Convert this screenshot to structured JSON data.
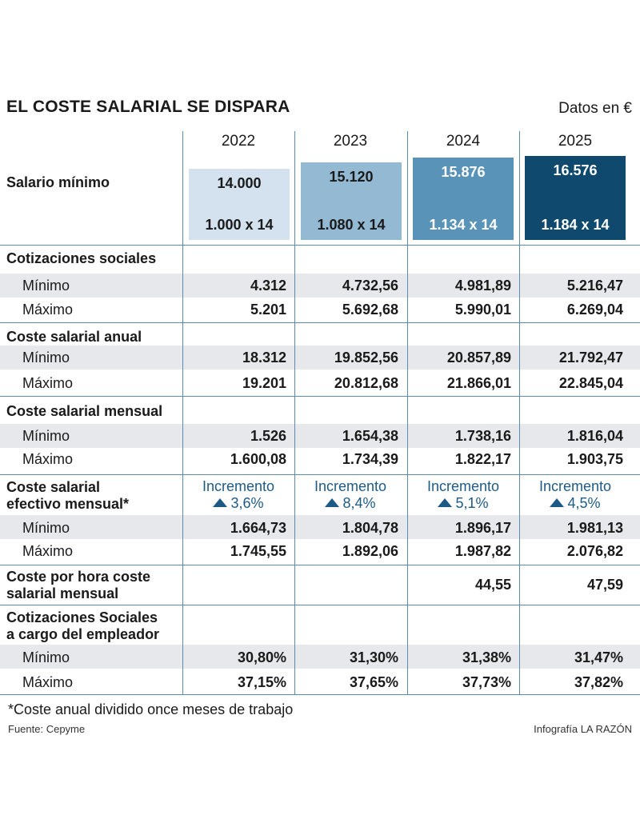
{
  "header": {
    "title": "EL COSTE SALARIAL SE DISPARA",
    "units": "Datos en €"
  },
  "chart_data": {
    "type": "table",
    "years": [
      "2022",
      "2023",
      "2024",
      "2025"
    ],
    "colors": [
      "#d3e2ee",
      "#93b9d3",
      "#5a93b8",
      "#0f4a6e"
    ],
    "salario_minimo": {
      "label": "Salario mínimo",
      "anual": [
        "14.000",
        "15.120",
        "15.876",
        "16.576"
      ],
      "mensual": [
        "1.000 x 14",
        "1.080 x 14",
        "1.134 x 14",
        "1.184 x 14"
      ]
    },
    "cotizaciones": {
      "label": "Cotizaciones sociales",
      "min_label": "Mínimo",
      "max_label": "Máximo",
      "min": [
        "4.312",
        "4.732,56",
        "4.981,89",
        "5.216,47"
      ],
      "max": [
        "5.201",
        "5.692,68",
        "5.990,01",
        "6.269,04"
      ]
    },
    "coste_anual": {
      "label": "Coste salarial anual",
      "min_label": "Mínimo",
      "max_label": "Máximo",
      "min": [
        "18.312",
        "19.852,56",
        "20.857,89",
        "21.792,47"
      ],
      "max": [
        "19.201",
        "20.812,68",
        "21.866,01",
        "22.845,04"
      ]
    },
    "coste_mensual": {
      "label": "Coste salarial mensual",
      "min_label": "Mínimo",
      "max_label": "Máximo",
      "min": [
        "1.526",
        "1.654,38",
        "1.738,16",
        "1.816,04"
      ],
      "max": [
        "1.600,08",
        "1.734,39",
        "1.822,17",
        "1.903,75"
      ]
    },
    "coste_efectivo": {
      "label_line1": "Coste salarial",
      "label_line2": "efectivo mensual*",
      "increment_label": "Incremento",
      "increments": [
        "3,6%",
        "8,4%",
        "5,1%",
        "4,5%"
      ],
      "min_label": "Mínimo",
      "max_label": "Máximo",
      "min": [
        "1.664,73",
        "1.804,78",
        "1.896,17",
        "1.981,13"
      ],
      "max": [
        "1.745,55",
        "1.892,06",
        "1.987,82",
        "2.076,82"
      ]
    },
    "coste_hora": {
      "label_line1": "Coste  por hora coste",
      "label_line2": "salarial mensual",
      "values": [
        "",
        "",
        "44,55",
        "47,59"
      ]
    },
    "cotizaciones_empleador": {
      "label_line1": "Cotizaciones Sociales",
      "label_line2": "a cargo del empleador",
      "min_label": "Mínimo",
      "max_label": "Máximo",
      "min": [
        "30,80%",
        "31,30%",
        "31,38%",
        "31,47%"
      ],
      "max": [
        "37,15%",
        "37,65%",
        "37,73%",
        "37,82%"
      ]
    }
  },
  "footer": {
    "note": "*Coste anual dividido once meses de trabajo",
    "source": "Fuente: Cepyme",
    "credit": "Infografía LA RAZÓN"
  }
}
